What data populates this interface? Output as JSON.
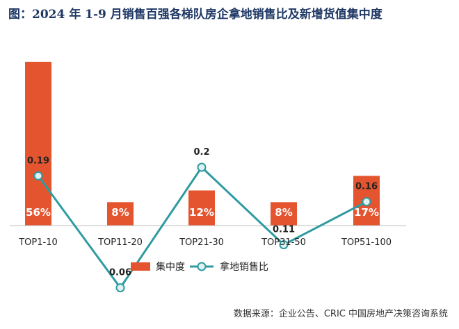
{
  "title": "图：2024 年 1-9 月销售百强各梯队房企拿地销售比及新增货值集中度",
  "source": "数据来源：企业公告、CRIC 中国房地产决策咨询系统",
  "colors": {
    "bar": "#e4552f",
    "line": "#2e9ba1",
    "marker_fill": "#dff1f1",
    "axis": "#bfbfbf",
    "text": "#222222"
  },
  "chart_data": {
    "type": "bar",
    "categories": [
      "TOP1-10",
      "TOP11-20",
      "TOP21-30",
      "TOP31-50",
      "TOP51-100"
    ],
    "series": [
      {
        "name": "集中度",
        "type": "bar",
        "values": [
          56,
          8,
          12,
          8,
          17
        ],
        "labels": [
          "56%",
          "8%",
          "12%",
          "8%",
          "17%"
        ]
      },
      {
        "name": "拿地销售比",
        "type": "line",
        "values": [
          0.19,
          0.06,
          0.2,
          0.11,
          0.16
        ],
        "labels": [
          "0.19",
          "0.06",
          "0.2",
          "0.11",
          "0.16"
        ]
      }
    ],
    "legend_position": "bottom",
    "grid": false
  }
}
